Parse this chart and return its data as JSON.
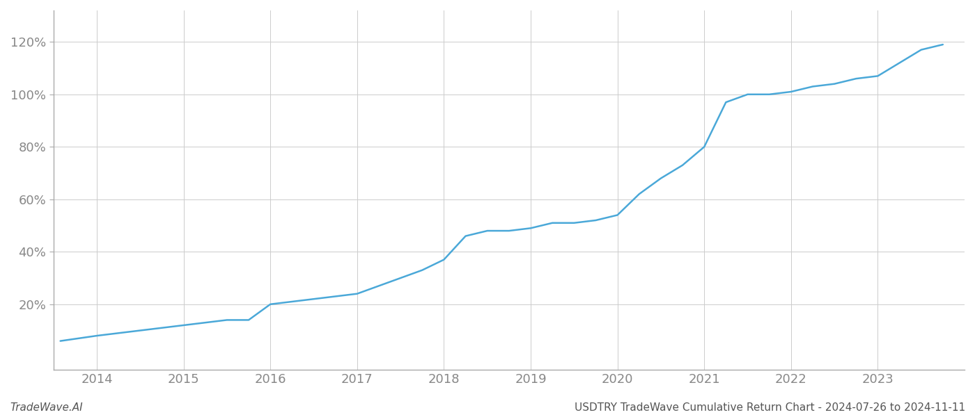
{
  "title": "",
  "footer_left": "TradeWave.AI",
  "footer_right": "USDTRY TradeWave Cumulative Return Chart - 2024-07-26 to 2024-11-11",
  "line_color": "#4aa8d8",
  "background_color": "#ffffff",
  "grid_color": "#cccccc",
  "x_years": [
    2013.58,
    2014.0,
    2014.25,
    2014.5,
    2014.75,
    2015.0,
    2015.25,
    2015.5,
    2015.75,
    2016.0,
    2016.25,
    2016.5,
    2016.75,
    2017.0,
    2017.25,
    2017.5,
    2017.75,
    2018.0,
    2018.25,
    2018.5,
    2018.75,
    2019.0,
    2019.25,
    2019.5,
    2019.75,
    2020.0,
    2020.25,
    2020.5,
    2020.75,
    2021.0,
    2021.25,
    2021.5,
    2021.75,
    2022.0,
    2022.25,
    2022.5,
    2022.75,
    2023.0,
    2023.25,
    2023.5,
    2023.75
  ],
  "y_values": [
    0.06,
    0.08,
    0.09,
    0.1,
    0.11,
    0.12,
    0.13,
    0.14,
    0.14,
    0.2,
    0.21,
    0.22,
    0.23,
    0.24,
    0.27,
    0.3,
    0.33,
    0.37,
    0.46,
    0.48,
    0.48,
    0.49,
    0.51,
    0.51,
    0.52,
    0.54,
    0.62,
    0.68,
    0.73,
    0.8,
    0.97,
    1.0,
    1.0,
    1.01,
    1.03,
    1.04,
    1.06,
    1.07,
    1.12,
    1.17,
    1.19
  ],
  "xlim": [
    2013.5,
    2024.0
  ],
  "ylim": [
    -0.05,
    1.32
  ],
  "yticks": [
    0.2,
    0.4,
    0.6,
    0.8,
    1.0,
    1.2
  ],
  "xticks": [
    2014,
    2015,
    2016,
    2017,
    2018,
    2019,
    2020,
    2021,
    2022,
    2023
  ],
  "line_width": 1.8,
  "figsize": [
    14.0,
    6.0
  ],
  "dpi": 100
}
